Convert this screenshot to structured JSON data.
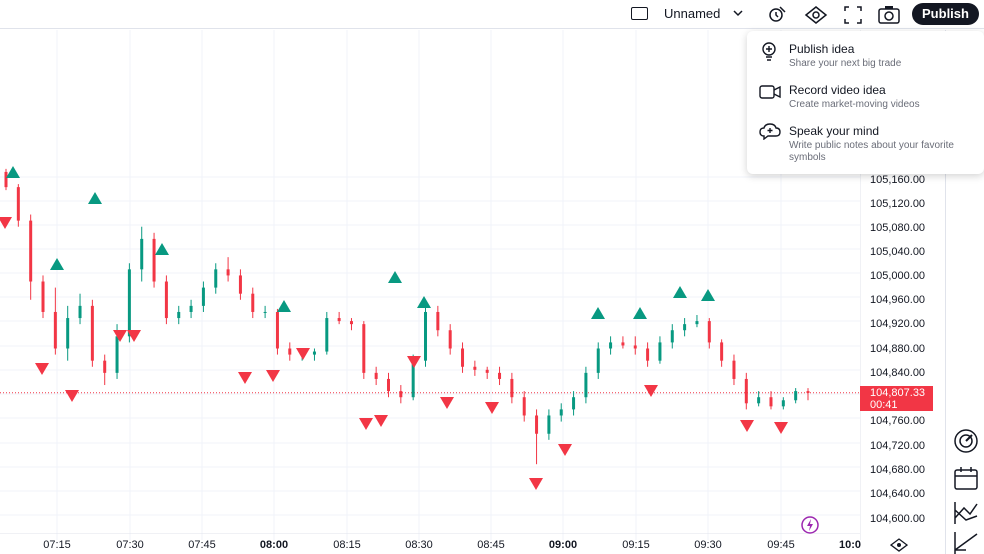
{
  "topbar": {
    "layout_name": "Unnamed",
    "publish_label": "Publish",
    "icons": [
      "layout-icon",
      "chevron-down-icon",
      "alert-icon",
      "eye-icon",
      "fullscreen-icon",
      "camera-icon"
    ]
  },
  "dropdown": {
    "items": [
      {
        "title": "Publish idea",
        "subtitle": "Share your next big trade",
        "icon": "bulb-icon"
      },
      {
        "title": "Record video idea",
        "subtitle": "Create market-moving videos",
        "icon": "video-icon"
      },
      {
        "title": "Speak your mind",
        "subtitle": "Write public notes about your favorite symbols",
        "icon": "cloud-speech-icon"
      }
    ]
  },
  "price_axis": {
    "labels": [
      "105,160.00",
      "105,120.00",
      "105,080.00",
      "105,040.00",
      "105,000.00",
      "104,960.00",
      "104,920.00",
      "104,880.00",
      "104,840.00",
      "104,760.00",
      "104,720.00",
      "104,680.00",
      "104,640.00",
      "104,600.00"
    ],
    "current_price": "104,807.33",
    "countdown": "00:41"
  },
  "time_axis": {
    "labels": [
      {
        "text": "07:15",
        "bold": false
      },
      {
        "text": "07:30",
        "bold": false
      },
      {
        "text": "07:45",
        "bold": false
      },
      {
        "text": "08:00",
        "bold": true
      },
      {
        "text": "08:15",
        "bold": false
      },
      {
        "text": "08:30",
        "bold": false
      },
      {
        "text": "08:45",
        "bold": false
      },
      {
        "text": "09:00",
        "bold": true
      },
      {
        "text": "09:15",
        "bold": false
      },
      {
        "text": "09:30",
        "bold": false
      },
      {
        "text": "09:45",
        "bold": false
      },
      {
        "text": "10:0",
        "bold": true
      }
    ]
  },
  "right_toolbar": {
    "icons": [
      "gauge-icon",
      "calendar-icon",
      "trend-lines-icon",
      "angle-line-icon"
    ]
  },
  "colors": {
    "up": "#089981",
    "down": "#f23645",
    "price_line": "#f23645",
    "grid": "#f0f3fa",
    "text": "#131722"
  },
  "chart_data": {
    "type": "candlestick",
    "series": [
      {
        "name": "price",
        "close_last": 104807.33
      }
    ],
    "ylim": [
      104580,
      105200
    ],
    "candles": [
      [
        105170,
        105175,
        105140,
        105145
      ],
      [
        105145,
        105150,
        105080,
        105090
      ],
      [
        105090,
        105100,
        104960,
        104990
      ],
      [
        104990,
        105000,
        104930,
        104940
      ],
      [
        104940,
        104980,
        104870,
        104880
      ],
      [
        104880,
        104950,
        104860,
        104930
      ],
      [
        104930,
        104970,
        104920,
        104950
      ],
      [
        104950,
        104960,
        104850,
        104860
      ],
      [
        104860,
        104870,
        104820,
        104840
      ],
      [
        104840,
        104920,
        104830,
        104900
      ],
      [
        104900,
        105020,
        104890,
        105010
      ],
      [
        105010,
        105080,
        104990,
        105060
      ],
      [
        105060,
        105070,
        104980,
        104990
      ],
      [
        104990,
        105000,
        104920,
        104930
      ],
      [
        104930,
        104950,
        104920,
        104940
      ],
      [
        104940,
        104960,
        104930,
        104950
      ],
      [
        104950,
        104990,
        104940,
        104980
      ],
      [
        104980,
        105020,
        104970,
        105010
      ],
      [
        105010,
        105030,
        104990,
        105000
      ],
      [
        105000,
        105010,
        104960,
        104970
      ],
      [
        104970,
        104980,
        104930,
        104940
      ],
      [
        104940,
        104950,
        104930,
        104940
      ],
      [
        104940,
        104945,
        104870,
        104880
      ],
      [
        104880,
        104890,
        104860,
        104870
      ],
      [
        104870,
        104880,
        104860,
        104870
      ],
      [
        104870,
        104880,
        104860,
        104875
      ],
      [
        104875,
        104940,
        104870,
        104930
      ],
      [
        104930,
        104940,
        104920,
        104925
      ],
      [
        104925,
        104930,
        104910,
        104920
      ],
      [
        104920,
        104925,
        104830,
        104840
      ],
      [
        104840,
        104850,
        104820,
        104830
      ],
      [
        104830,
        104840,
        104800,
        104810
      ],
      [
        104810,
        104820,
        104790,
        104800
      ],
      [
        104800,
        104870,
        104795,
        104860
      ],
      [
        104860,
        104960,
        104850,
        104940
      ],
      [
        104940,
        104950,
        104900,
        104910
      ],
      [
        104910,
        104920,
        104870,
        104880
      ],
      [
        104880,
        104890,
        104840,
        104850
      ],
      [
        104850,
        104860,
        104835,
        104845
      ],
      [
        104845,
        104850,
        104830,
        104840
      ],
      [
        104840,
        104850,
        104820,
        104830
      ],
      [
        104830,
        104840,
        104790,
        104800
      ],
      [
        104800,
        104810,
        104760,
        104770
      ],
      [
        104770,
        104780,
        104690,
        104740
      ],
      [
        104740,
        104780,
        104730,
        104770
      ],
      [
        104770,
        104790,
        104760,
        104780
      ],
      [
        104780,
        104810,
        104770,
        104800
      ],
      [
        104800,
        104850,
        104790,
        104840
      ],
      [
        104840,
        104890,
        104830,
        104880
      ],
      [
        104880,
        104900,
        104870,
        104890
      ],
      [
        104890,
        104900,
        104880,
        104885
      ],
      [
        104885,
        104900,
        104870,
        104880
      ],
      [
        104880,
        104890,
        104850,
        104860
      ],
      [
        104860,
        104900,
        104855,
        104890
      ],
      [
        104890,
        104920,
        104880,
        104910
      ],
      [
        104910,
        104930,
        104900,
        104920
      ],
      [
        104920,
        104935,
        104915,
        104925
      ],
      [
        104925,
        104930,
        104880,
        104890
      ],
      [
        104890,
        104895,
        104850,
        104860
      ],
      [
        104860,
        104870,
        104820,
        104830
      ],
      [
        104830,
        104840,
        104780,
        104790
      ],
      [
        104790,
        104810,
        104785,
        104800
      ],
      [
        104800,
        104810,
        104780,
        104785
      ],
      [
        104785,
        104800,
        104780,
        104795
      ],
      [
        104795,
        104815,
        104790,
        104810
      ],
      [
        104810,
        104815,
        104795,
        104807
      ]
    ],
    "signals": {
      "buy_count": 13,
      "sell_count": 20
    }
  }
}
